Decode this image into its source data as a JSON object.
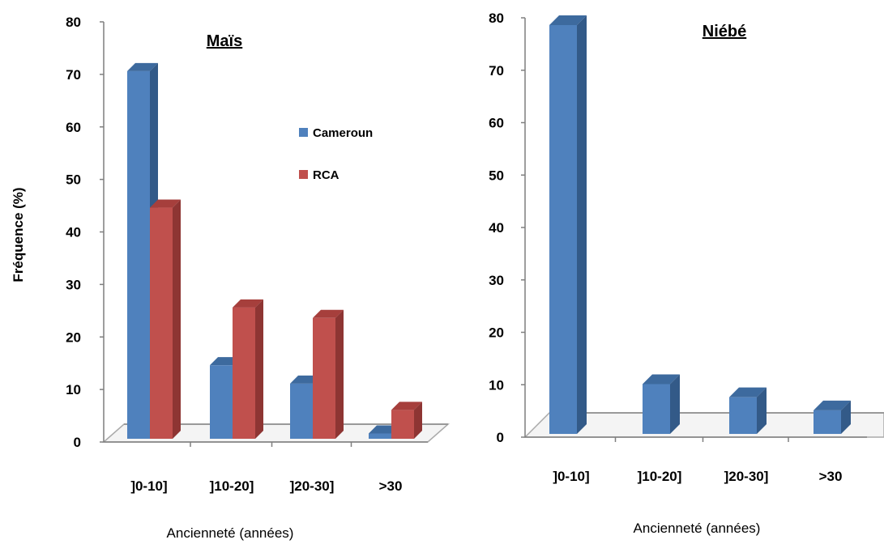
{
  "chart_data": [
    {
      "type": "bar",
      "title": "Maïs",
      "xlabel": "Ancienneté (années)",
      "ylabel": "Fréquence (%)",
      "categories": [
        "]0-10]",
        "]10-20]",
        "]20-30]",
        ">30"
      ],
      "yticks": [
        "0",
        "10",
        "20",
        "30",
        "40",
        "50",
        "60",
        "70",
        "80"
      ],
      "ylim": [
        0,
        80
      ],
      "series": [
        {
          "name": "Cameroun",
          "values": [
            70,
            14,
            10.5,
            1
          ],
          "color": "#4f81bd",
          "top_color": "#3d6a9e",
          "side_color": "#335a88"
        },
        {
          "name": "RCA",
          "values": [
            44,
            25,
            23,
            5.5
          ],
          "color": "#c0504d",
          "top_color": "#a63f3c",
          "side_color": "#8e3533"
        }
      ],
      "legend": "top-right",
      "grid": false,
      "style": "3d-columns"
    },
    {
      "type": "bar",
      "title": "Niébé",
      "xlabel": "Ancienneté (années)",
      "ylabel": "",
      "categories": [
        "]0-10]",
        "]10-20]",
        "]20-30]",
        ">30"
      ],
      "yticks": [
        "0",
        "10",
        "20",
        "30",
        "40",
        "50",
        "60",
        "70",
        "80"
      ],
      "ylim": [
        0,
        80
      ],
      "series": [
        {
          "name": "",
          "values": [
            78,
            9.5,
            7,
            4.5
          ],
          "color": "#4f81bd",
          "top_color": "#3d6a9e",
          "side_color": "#335a88"
        }
      ],
      "legend": "none",
      "grid": false,
      "style": "3d-columns"
    }
  ]
}
